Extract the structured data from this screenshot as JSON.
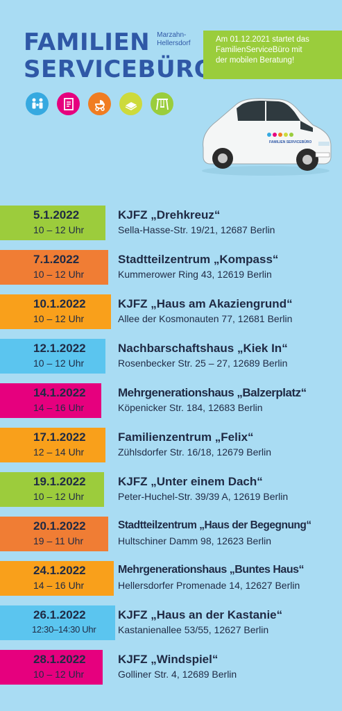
{
  "logo": {
    "line1": "FAMILIEN",
    "region_line1": "Marzahn-",
    "region_line2": "Hellersdorf",
    "line2": "SERVICEBÜRO"
  },
  "notice": {
    "line1": "Am 01.12.2021 startet das",
    "line2": "FamilienServiceBüro mit",
    "line3": "der mobilen Beratung!"
  },
  "icons": [
    {
      "name": "family-icon",
      "color": "#36a9e0"
    },
    {
      "name": "document-icon",
      "color": "#e6007e"
    },
    {
      "name": "stroller-icon",
      "color": "#f07d22"
    },
    {
      "name": "book-icon",
      "color": "#cdda3c"
    },
    {
      "name": "swing-icon",
      "color": "#9acd3c"
    }
  ],
  "car": {
    "door_text": "FAMILIEN SERVICEBÜRO"
  },
  "entries": [
    {
      "date": "5.1.2022",
      "time": "10 – 12 Uhr",
      "venue": "KJFZ „Drehkreuz“",
      "address": "Sella-Hasse-Str. 19/21, 12687 Berlin",
      "color": "#9ccc3c"
    },
    {
      "date": "7.1.2022",
      "time": "10 – 12 Uhr",
      "venue": "Stadtteilzentrum „Kompass“",
      "address": "Kummerower Ring 43, 12619 Berlin",
      "color": "#f07d34"
    },
    {
      "date": "10.1.2022",
      "time": "10 – 12 Uhr",
      "venue": "KJFZ „Haus am Akaziengrund“",
      "address": "Allee der Kosmonauten 77, 12681 Berlin",
      "color": "#f9a01b"
    },
    {
      "date": "12.1.2022",
      "time": "10 – 12 Uhr",
      "venue": "Nachbarschaftshaus „Kiek In“",
      "address": "Rosenbecker Str. 25 – 27, 12689 Berlin",
      "color": "#5bc5ef"
    },
    {
      "date": "14.1.2022",
      "time": "14 – 16 Uhr",
      "venue": "Mehrgenerationshaus „Balzerplatz“",
      "address": "Köpenicker Str. 184, 12683 Berlin",
      "color": "#e6007e"
    },
    {
      "date": "17.1.2022",
      "time": "12 – 14 Uhr",
      "venue": "Familienzentrum „Felix“",
      "address": "Zühlsdorfer Str. 16/18, 12679 Berlin",
      "color": "#f9a01b"
    },
    {
      "date": "19.1.2022",
      "time": "10 – 12 Uhr",
      "venue": "KJFZ „Unter einem Dach“",
      "address": "Peter-Huchel-Str. 39/39 A, 12619 Berlin",
      "color": "#9ccc3c"
    },
    {
      "date": "20.1.2022",
      "time": "19 – 11 Uhr",
      "venue": "Stadtteilzentrum „Haus der Begegnung“",
      "address": "Hultschiner Damm 98, 12623 Berlin",
      "color": "#f07d34"
    },
    {
      "date": "24.1.2022",
      "time": "14 – 16 Uhr",
      "venue": "Mehrgenerationshaus „Buntes Haus“",
      "address": "Hellersdorfer Promenade 14, 12627 Berlin",
      "color": "#f9a01b"
    },
    {
      "date": "26.1.2022",
      "time": "12:30–14:30 Uhr",
      "venue": "KJFZ „Haus an der Kastanie“",
      "address": "Kastanienallee 53/55, 12627 Berlin",
      "color": "#5bc5ef"
    },
    {
      "date": "28.1.2022",
      "time": "10 – 12 Uhr",
      "venue": "KJFZ „Windspiel“",
      "address": "Golliner Str. 4, 12689 Berlin",
      "color": "#e6007e"
    }
  ]
}
